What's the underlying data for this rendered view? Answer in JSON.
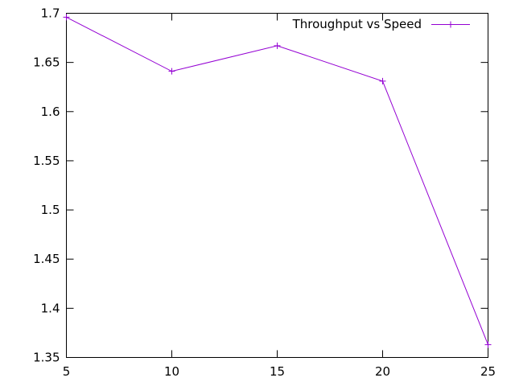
{
  "chart_data": {
    "type": "line",
    "title": "",
    "xlabel": "",
    "ylabel": "",
    "x": [
      5,
      10,
      15,
      20,
      25
    ],
    "xlim": [
      5,
      25
    ],
    "ylim": [
      1.35,
      1.7
    ],
    "x_ticks": [
      5,
      10,
      15,
      20,
      25
    ],
    "x_tick_labels": [
      "5",
      "10",
      "15",
      "20",
      "25"
    ],
    "y_ticks": [
      1.35,
      1.4,
      1.45,
      1.5,
      1.55,
      1.6,
      1.65,
      1.7
    ],
    "y_tick_labels": [
      "1.35",
      "1.4",
      "1.45",
      "1.5",
      "1.55",
      "1.6",
      "1.65",
      "1.7"
    ],
    "grid": false,
    "legend_position": "top-right",
    "series": [
      {
        "name": "Throughput vs Speed",
        "color": "#9400d3",
        "marker": "plus",
        "values": [
          1.696,
          1.641,
          1.667,
          1.631,
          1.363
        ]
      }
    ]
  }
}
